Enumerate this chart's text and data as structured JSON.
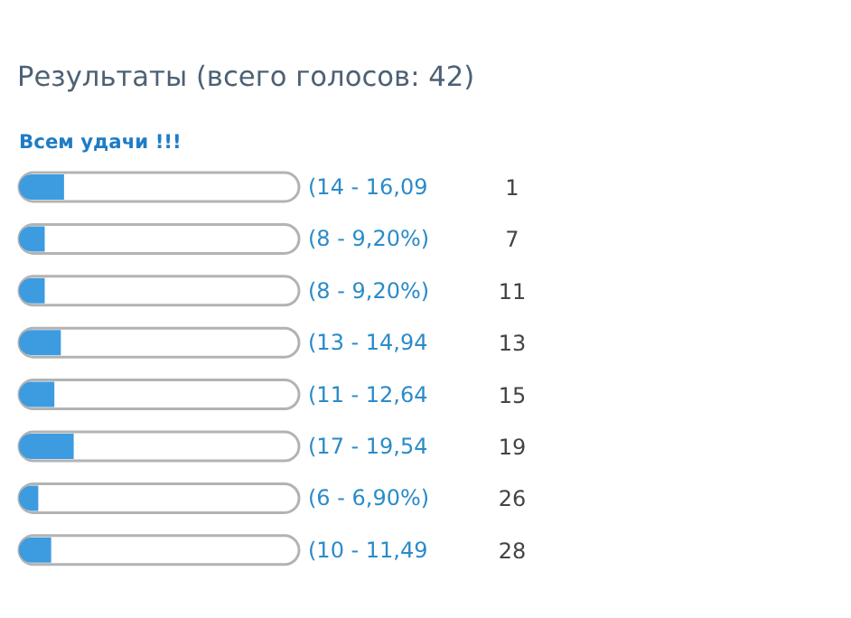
{
  "chart_data": {
    "type": "bar",
    "orientation": "horizontal",
    "title": "Результаты (всего голосов: 42)",
    "subtitle": "Всем удачи !!!",
    "categories": [
      "1",
      "7",
      "11",
      "13",
      "15",
      "19",
      "26",
      "28"
    ],
    "values": [
      14,
      8,
      8,
      13,
      11,
      17,
      6,
      10
    ],
    "value_labels": [
      "(14 - 16,09",
      "(8 - 9,20%)",
      "(8 - 9,20%)",
      "(13 - 14,94",
      "(11 - 12,64",
      "(17 - 19,54",
      "(6 - 6,90%)",
      "(10 - 11,49"
    ],
    "color": "#3d9be0",
    "grid": false
  }
}
